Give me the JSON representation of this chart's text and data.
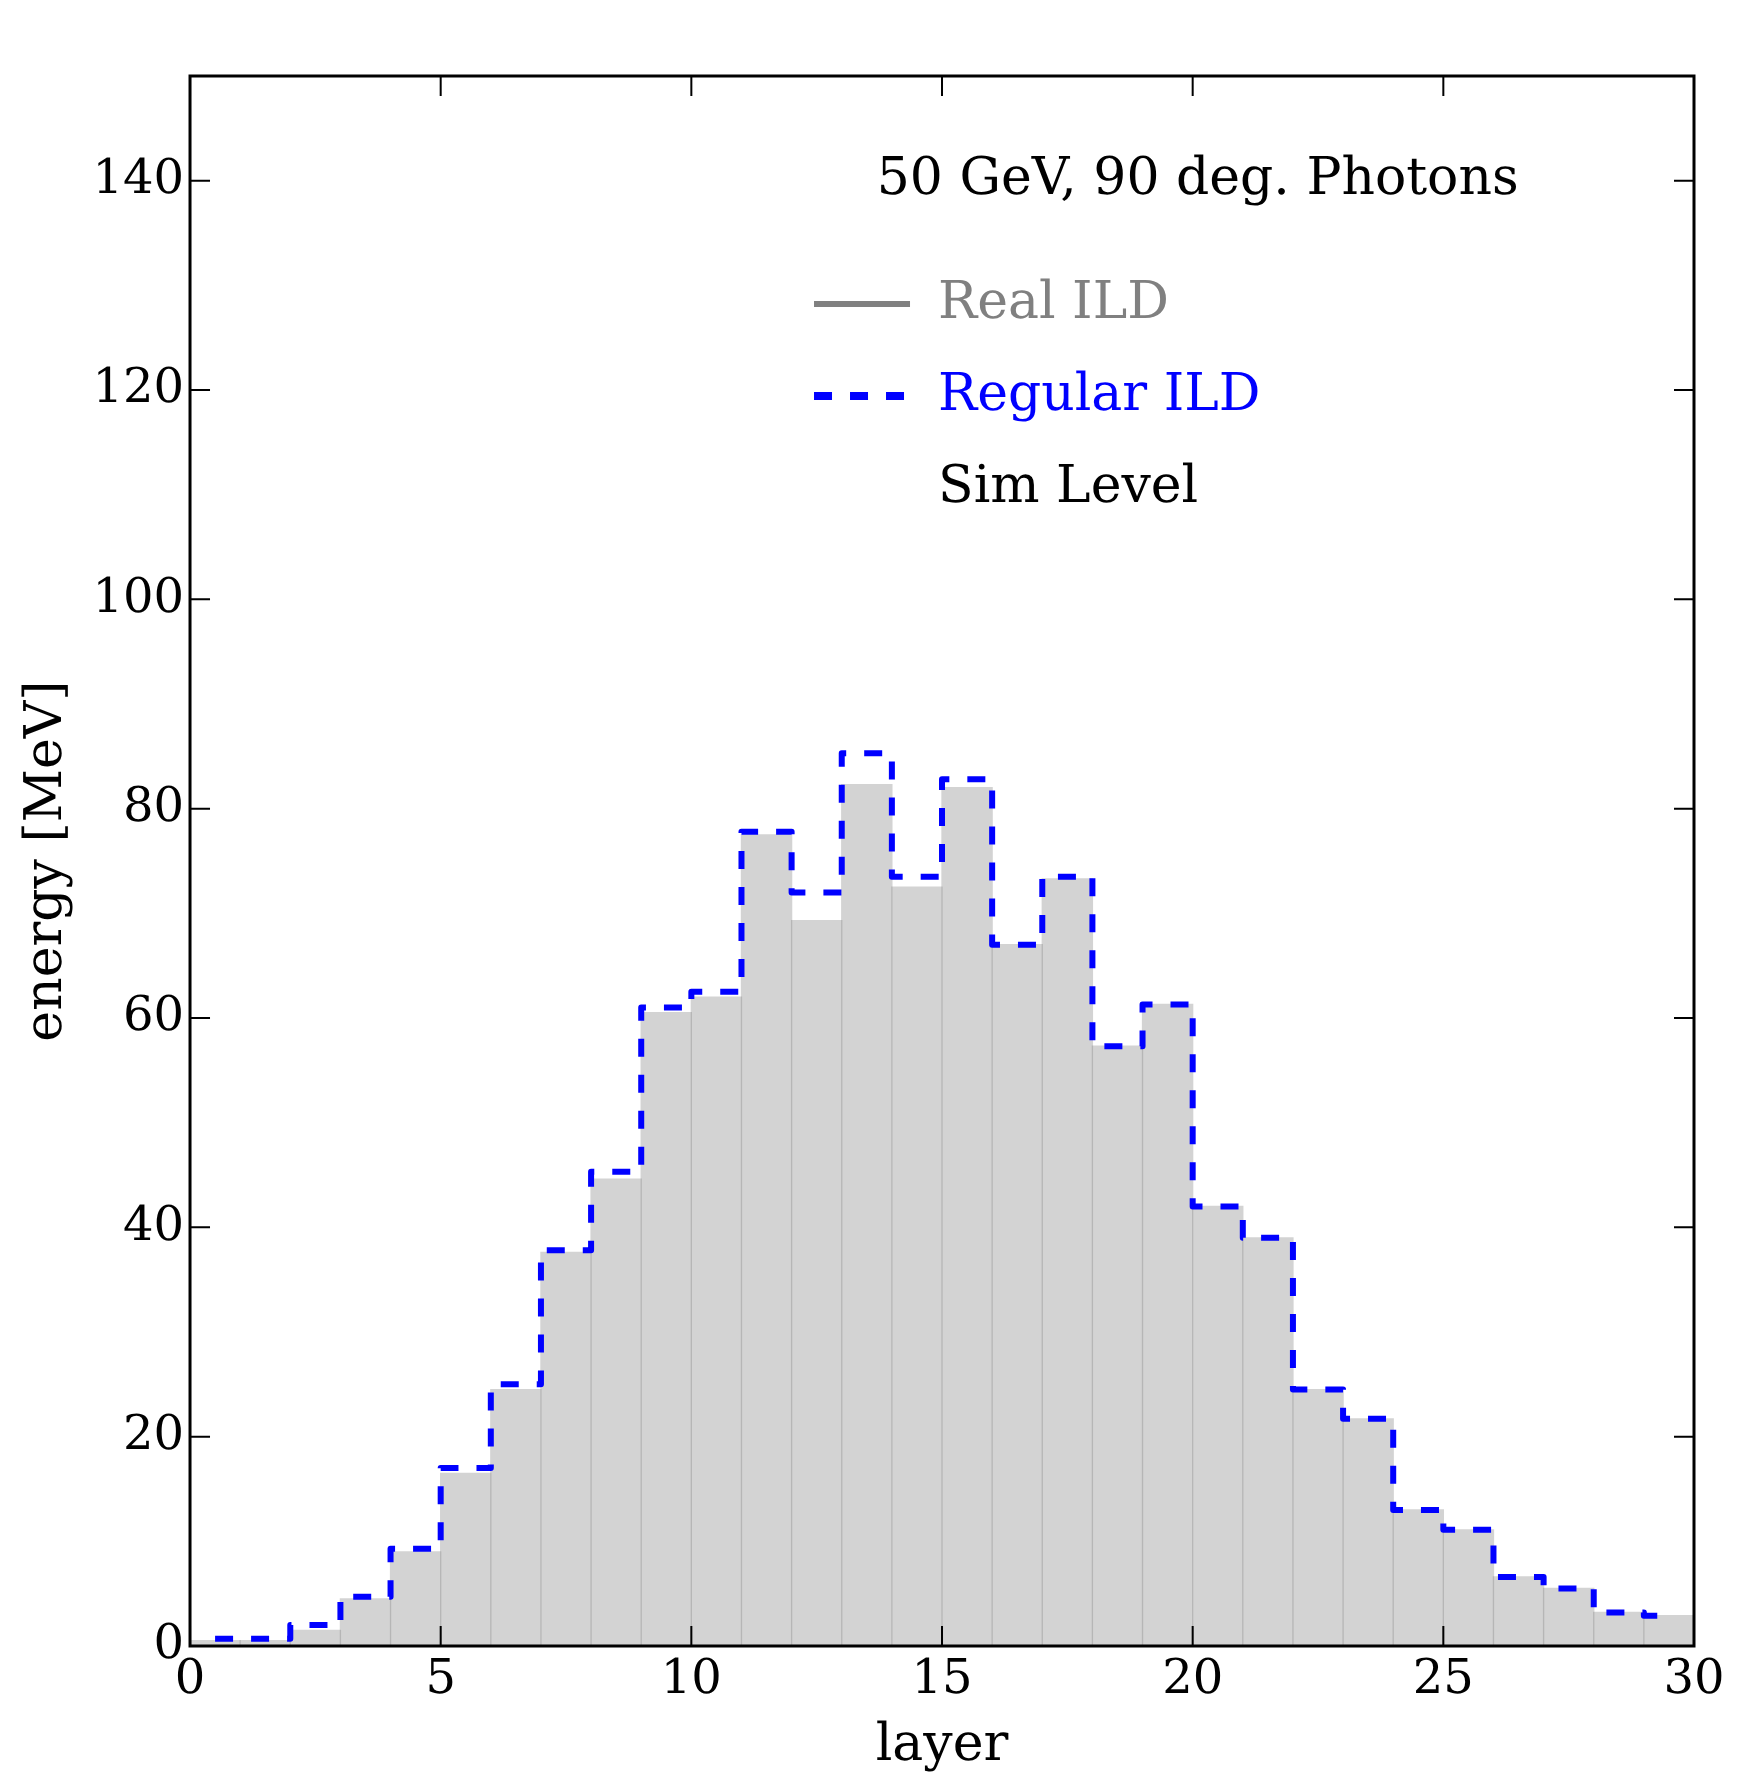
{
  "chart_data": {
    "type": "histogram",
    "title": "50 GeV, 90 deg. Photons",
    "xlabel": "layer",
    "ylabel": "energy [MeV]",
    "bins": [
      0,
      1,
      2,
      3,
      4,
      5,
      6,
      7,
      8,
      9,
      10,
      11,
      12,
      13,
      14,
      15,
      16,
      17,
      18,
      19,
      20,
      21,
      22,
      23,
      24,
      25,
      26,
      27,
      28,
      29,
      30
    ],
    "series": [
      {
        "name": "Real ILD",
        "color": "#808080",
        "values": [
          0.5,
          0.5,
          1.5,
          4.5,
          9,
          16.5,
          24.5,
          37.6,
          44.6,
          60.5,
          62,
          77.5,
          69.3,
          82.3,
          72.5,
          82,
          67,
          73.3,
          57.3,
          61.3,
          42,
          39,
          24.5,
          21.7,
          13,
          11.1,
          6.6,
          5.5,
          3.2,
          2.9
        ]
      },
      {
        "name": "Regular ILD",
        "color": "#0000ff",
        "type": "step",
        "line_style": "dashed",
        "x": [
          0.5,
          1.5,
          2.5,
          3.5,
          4.5,
          5.5,
          6.5,
          7.5,
          8.5,
          9.5,
          10.5,
          11.5,
          12.5,
          13.5,
          14.5,
          15.5,
          16.5,
          17.5,
          18.5,
          19.5,
          20.5,
          21.5,
          22.5,
          23.5,
          24.5,
          25.5,
          26.5,
          27.5,
          28.5,
          29.5
        ],
        "values": [
          0.7,
          0.7,
          2,
          4.7,
          9.3,
          17,
          25,
          37.8,
          45.3,
          61,
          62.5,
          77.8,
          72,
          85.3,
          73.5,
          82.8,
          67,
          73.5,
          57.3,
          61.3,
          42,
          39,
          24.5,
          21.7,
          13,
          11.1,
          6.6,
          5.5,
          3.2,
          2.9
        ]
      }
    ],
    "annotations": [
      "Sim Level"
    ],
    "xlim": [
      0,
      30
    ],
    "xticks": [
      0,
      5,
      10,
      15,
      20,
      25,
      30
    ],
    "ylim": [
      0,
      150
    ],
    "yticks": [
      0,
      20,
      40,
      60,
      80,
      100,
      120,
      140
    ],
    "grid": false,
    "legend": "top right"
  }
}
